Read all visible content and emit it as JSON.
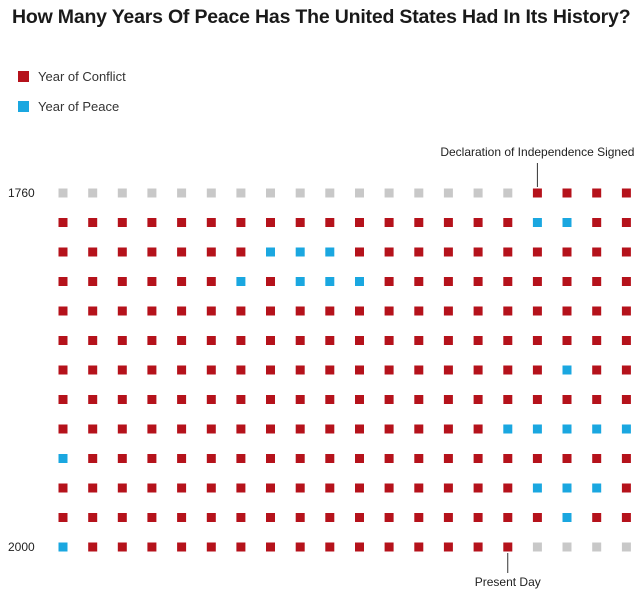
{
  "title": "How Many Years Of Peace Has The United States Had In Its History?",
  "legend": [
    {
      "label": "Year of Conflict",
      "color": "#b5121b"
    },
    {
      "label": "Year of Peace",
      "color": "#1aa7e0"
    }
  ],
  "colors": {
    "conflict": "#b5121b",
    "peace": "#1aa7e0",
    "outside": "#c8c8c8"
  },
  "chart_data": {
    "type": "waffle",
    "columns": 20,
    "rows": 13,
    "row_labels": [
      {
        "row": 0,
        "label": "1760"
      },
      {
        "row": 12,
        "label": "2000"
      }
    ],
    "annotations": [
      {
        "text": "Declaration of Independence Signed",
        "row": 0,
        "col": 16,
        "position": "above"
      },
      {
        "text": "Present Day",
        "row": 12,
        "col": 15,
        "position": "below"
      }
    ],
    "cells": [
      "OOOOOOOOOOOOOOOOCCCC",
      "CCCCCCCCCCCCCCCCPPCC",
      "CCCCCCCPPPCCCCCCCCCC",
      "CCCCCCPCPPPCCCCCCCCC",
      "CCCCCCCCCCCCCCCCCCCC",
      "CCCCCCCCCCCCCCCCCCCC",
      "CCCCCCCCCCCCCCCCCPCC",
      "CCCCCCCCCCCCCCCCCCCC",
      "CCCCCCCCCCCCCCCPPPPP",
      "PCCCCCCCCCCCCCCCCCCC",
      "CCCCCCCCCCCCCCCCPPPC",
      "CCCCCCCCCCCCCCCCCPCC",
      "PCCCCCCCCCCCCCCCOOOO"
    ]
  }
}
